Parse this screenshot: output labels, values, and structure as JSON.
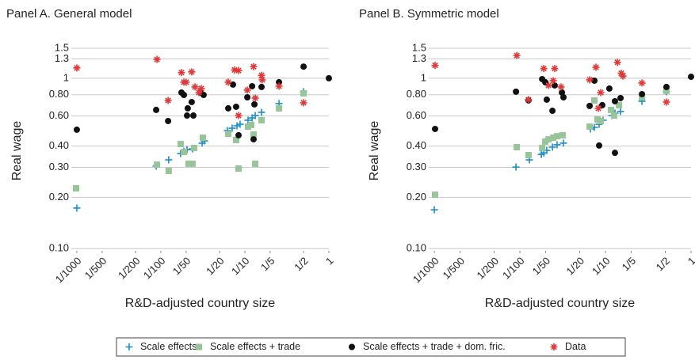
{
  "chart_data": [
    {
      "type": "scatter",
      "title": "Panel A. General model",
      "x_label": "R&D-adjusted country size",
      "y_label": "Real wage",
      "log_x": true,
      "log_y": true,
      "grid": true,
      "xlim": [
        0.00086,
        1
      ],
      "ylim": [
        0.094,
        1.5
      ],
      "xticks": [
        {
          "value": 0.001,
          "label": "1/1000"
        },
        {
          "value": 0.002,
          "label": "1/500"
        },
        {
          "value": 0.005,
          "label": "1/200"
        },
        {
          "value": 0.01,
          "label": "1/100"
        },
        {
          "value": 0.02,
          "label": "1/50"
        },
        {
          "value": 0.05,
          "label": "1/20"
        },
        {
          "value": 0.1,
          "label": "1/10"
        },
        {
          "value": 0.2,
          "label": "1/5"
        },
        {
          "value": 0.5,
          "label": "1/2"
        },
        1
      ],
      "yticks": [
        {
          "value": 0.1,
          "label": "0.10"
        },
        {
          "value": 0.2,
          "label": "0.20"
        },
        {
          "value": 0.3,
          "label": "0.30"
        },
        {
          "value": 0.4,
          "label": "0.40"
        },
        {
          "value": 0.6,
          "label": "0.60"
        },
        {
          "value": 0.8,
          "label": "0.80"
        },
        1,
        1.3,
        1.5
      ],
      "series": [
        {
          "name": "Scale effects",
          "color": "#1b8ec8",
          "marker": "plus",
          "x": [
            0.001,
            0.0088,
            0.0124,
            0.0172,
            0.0188,
            0.0205,
            0.0238,
            0.031,
            0.033,
            0.062,
            0.0706,
            0.0805,
            0.0878,
            0.109,
            0.122,
            0.133,
            0.158,
            0.255,
            0.5
          ],
          "values": [
            0.173,
            0.305,
            0.332,
            0.361,
            0.373,
            0.381,
            0.385,
            0.416,
            0.429,
            0.493,
            0.509,
            0.526,
            0.537,
            0.567,
            0.585,
            0.604,
            0.631,
            0.71,
            0.834
          ]
        },
        {
          "name": "Scale effects + trade",
          "color": "#98c49a",
          "marker": "square",
          "x": [
            0.00098,
            0.009,
            0.0124,
            0.0172,
            0.0188,
            0.0214,
            0.0238,
            0.0249,
            0.0316,
            0.0634,
            0.0787,
            0.0841,
            0.109,
            0.119,
            0.127,
            0.133,
            0.158,
            0.255,
            0.5
          ],
          "values": [
            0.226,
            0.311,
            0.286,
            0.411,
            0.369,
            0.315,
            0.315,
            0.39,
            0.448,
            0.472,
            0.434,
            0.295,
            0.52,
            0.532,
            0.468,
            0.315,
            0.567,
            0.666,
            0.816
          ]
        },
        {
          "name": "Scale effects + trade + dom.  fric.",
          "color": "#111111",
          "marker": "circle",
          "x": [
            0.001,
            0.0088,
            0.0122,
            0.0176,
            0.0188,
            0.0205,
            0.0209,
            0.0233,
            0.0244,
            0.0296,
            0.0323,
            0.0634,
            0.0722,
            0.0787,
            0.0841,
            0.107,
            0.122,
            0.13,
            0.127,
            0.158,
            0.255,
            0.5,
            1
          ],
          "values": [
            0.499,
            0.652,
            0.561,
            0.824,
            0.798,
            0.604,
            0.666,
            0.725,
            0.604,
            0.824,
            0.798,
            0.666,
            0.918,
            0.68,
            0.463,
            0.773,
            0.898,
            0.703,
            0.438,
            0.889,
            0.948,
            1.17,
            1
          ]
        },
        {
          "name": "Data",
          "color": "#e0393a",
          "marker": "asterisk",
          "x": [
            0.001,
            0.009,
            0.0122,
            0.0176,
            0.0188,
            0.02,
            0.0233,
            0.0255,
            0.0284,
            0.0303,
            0.0634,
            0.0754,
            0.0841,
            0.0841,
            0.107,
            0.127,
            0.133,
            0.158,
            0.161,
            0.255,
            0.5
          ],
          "values": [
            1.15,
            1.29,
            0.741,
            1.08,
            0.948,
            0.948,
            1.09,
            0.889,
            0.824,
            0.87,
            0.948,
            1.12,
            1.11,
            0.604,
            0.852,
            1.17,
            0.765,
            1.04,
            0.979,
            0.898,
            0.718
          ]
        }
      ]
    },
    {
      "type": "scatter",
      "title": "Panel B. Symmetric model",
      "x_label": "R&D-adjusted country size",
      "y_label": "Real wage",
      "log_x": true,
      "log_y": true,
      "grid": true,
      "xlim": [
        0.00086,
        1
      ],
      "ylim": [
        0.094,
        1.5
      ],
      "xticks": [
        {
          "value": 0.001,
          "label": "1/1000"
        },
        {
          "value": 0.002,
          "label": "1/500"
        },
        {
          "value": 0.005,
          "label": "1/200"
        },
        {
          "value": 0.01,
          "label": "1/100"
        },
        {
          "value": 0.02,
          "label": "1/50"
        },
        {
          "value": 0.05,
          "label": "1/20"
        },
        {
          "value": 0.1,
          "label": "1/10"
        },
        {
          "value": 0.2,
          "label": "1/5"
        },
        {
          "value": 0.5,
          "label": "1/2"
        },
        1
      ],
      "yticks": [
        {
          "value": 0.1,
          "label": "0.10"
        },
        {
          "value": 0.2,
          "label": "0.20"
        },
        {
          "value": 0.3,
          "label": "0.30"
        },
        {
          "value": 0.4,
          "label": "0.40"
        },
        {
          "value": 0.6,
          "label": "0.60"
        },
        {
          "value": 0.8,
          "label": "0.80"
        },
        1,
        1.3,
        1.5
      ],
      "series": [
        {
          "color": "#1b8ec8",
          "marker": "plus",
          "x": [
            0.001,
            0.009,
            0.0129,
            0.0178,
            0.019,
            0.0206,
            0.024,
            0.0272,
            0.0323,
            0.0667,
            0.0742,
            0.0843,
            0.0938,
            0.119,
            0.129,
            0.15,
            0.267,
            0.516
          ],
          "values": [
            0.169,
            0.301,
            0.332,
            0.357,
            0.365,
            0.377,
            0.394,
            0.407,
            0.416,
            0.504,
            0.515,
            0.537,
            0.567,
            0.604,
            0.624,
            0.638,
            0.733,
            0.834
          ]
        },
        {
          "color": "#98c49a",
          "marker": "square",
          "x": [
            0.00102,
            0.0092,
            0.0126,
            0.0182,
            0.0198,
            0.0216,
            0.0245,
            0.0272,
            0.0316,
            0.0653,
            0.0742,
            0.0808,
            0.088,
            0.116,
            0.126,
            0.144,
            0.267,
            0.516
          ],
          "values": [
            0.207,
            0.394,
            0.354,
            0.39,
            0.425,
            0.438,
            0.448,
            0.457,
            0.463,
            0.52,
            0.741,
            0.573,
            0.561,
            0.652,
            0.604,
            0.695,
            0.773,
            0.843
          ]
        },
        {
          "color": "#111111",
          "marker": "circle",
          "x": [
            0.00102,
            0.009,
            0.0126,
            0.0182,
            0.0198,
            0.0206,
            0.024,
            0.0255,
            0.031,
            0.0323,
            0.0653,
            0.0742,
            0.0843,
            0.0918,
            0.111,
            0.129,
            0.129,
            0.15,
            0.267,
            0.516,
            1
          ],
          "values": [
            0.504,
            0.834,
            0.741,
            0.989,
            0.948,
            0.749,
            0.644,
            0.908,
            0.824,
            0.773,
            0.688,
            0.968,
            0.403,
            0.695,
            0.87,
            0.733,
            0.365,
            0.765,
            0.807,
            0.889,
            1.02
          ]
        },
        {
          "color": "#e0393a",
          "marker": "asterisk",
          "x": [
            0.00102,
            0.0092,
            0.0126,
            0.019,
            0.0216,
            0.0245,
            0.0255,
            0.0303,
            0.0653,
            0.0774,
            0.0826,
            0.088,
            0.138,
            0.153,
            0.16,
            0.267,
            0.516
          ],
          "values": [
            1.19,
            1.36,
            0.749,
            1.14,
            0.908,
            0.968,
            1.14,
            0.889,
            0.979,
            1.16,
            0.666,
            0.824,
            1.24,
            1.07,
            1.03,
            0.938,
            0.725
          ]
        }
      ]
    }
  ]
}
